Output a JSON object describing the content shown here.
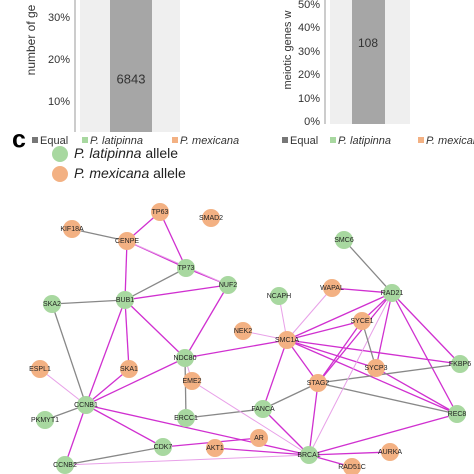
{
  "panel_a": {
    "y_axis_label": "number of ge",
    "yticks": [
      "30%",
      "20%",
      "10%"
    ],
    "bar_label": "6843",
    "legend": [
      "Equal",
      "P. latipinna",
      "P. mexicana"
    ]
  },
  "panel_b": {
    "y_axis_label": "meiotic genes w",
    "yticks": [
      "50%",
      "40%",
      "30%",
      "20%",
      "10%",
      "0%"
    ],
    "bar_label": "108",
    "legend": [
      "Equal",
      "P. latipinna",
      "P. mexicana"
    ]
  },
  "panel_c": {
    "label": "c",
    "legend": [
      {
        "species": "P. latipinna",
        "suffix": "allele"
      },
      {
        "species": "P. mexicana",
        "suffix": "allele"
      }
    ],
    "nodes": [
      "TP63",
      "SMAD2",
      "KIF18A",
      "CENPE",
      "SMC6",
      "TP73",
      "NUF2",
      "NCAPH",
      "WAPAL",
      "RAD21",
      "SKA2",
      "BUB1",
      "SYCE1",
      "NEK2",
      "SMC1A",
      "NDC80",
      "FKBP6",
      "ESPL1",
      "SKA1",
      "SYCP3",
      "EME2",
      "STAG2",
      "CCNB1",
      "FANCA",
      "ERCC1",
      "REC8",
      "PKMYT1",
      "CDK7",
      "AKT1",
      "AR",
      "BRCA1",
      "AURKA",
      "RAD51C",
      "CCNB2"
    ]
  }
}
